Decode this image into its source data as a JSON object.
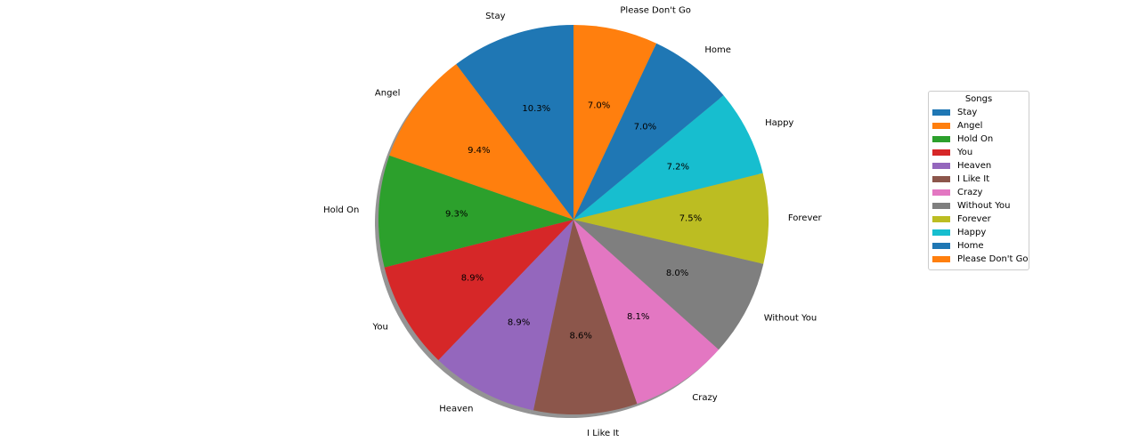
{
  "chart_data": {
    "type": "pie",
    "title": "",
    "categories": [
      "Stay",
      "Angel",
      "Hold On",
      "You",
      "Heaven",
      "I Like It",
      "Crazy",
      "Without You",
      "Forever",
      "Happy",
      "Home",
      "Please Don't Go"
    ],
    "values": [
      10.3,
      9.4,
      9.3,
      8.9,
      8.9,
      8.6,
      8.1,
      8.0,
      7.5,
      7.2,
      7.0,
      7.0
    ],
    "value_labels": [
      "10.3%",
      "9.4%",
      "9.3%",
      "8.9%",
      "8.9%",
      "8.6%",
      "8.1%",
      "8.0%",
      "7.5%",
      "7.2%",
      "7.0%",
      "7.0%"
    ],
    "colors": [
      "#1f77b4",
      "#ff7f0e",
      "#2ca02c",
      "#d62728",
      "#9467bd",
      "#8c564b",
      "#e377c2",
      "#7f7f7f",
      "#bcbd22",
      "#17becf",
      "#1f77b4",
      "#ff7f0e"
    ],
    "start_angle_deg": 90,
    "direction": "counterclockwise",
    "shadow": true,
    "legend": {
      "title": "Songs",
      "placement": "right",
      "entries": [
        "Stay",
        "Angel",
        "Hold On",
        "You",
        "Heaven",
        "I Like It",
        "Crazy",
        "Without You",
        "Forever",
        "Happy",
        "Home",
        "Please Don't Go"
      ]
    }
  }
}
